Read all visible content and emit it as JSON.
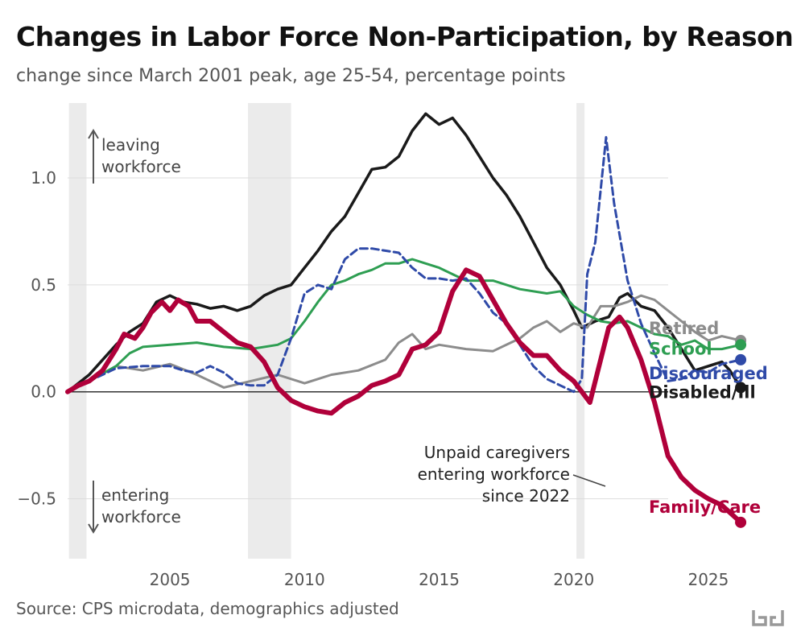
{
  "chart_data": {
    "type": "line",
    "title": "Changes in Labor Force Non-Participation, by Reason",
    "subtitle": "change since March 2001 peak, age 25-54, percentage points",
    "source": "Source: CPS microdata, demographics adjusted",
    "xlabel": "",
    "ylabel": "",
    "xlim": [
      2001.2,
      2028.5
    ],
    "ylim": [
      -0.78,
      1.35
    ],
    "x_ticks": [
      2005,
      2010,
      2015,
      2020,
      2025
    ],
    "x_tick_labels": [
      "2005",
      "2010",
      "2015",
      "2020",
      "2025"
    ],
    "y_ticks": [
      -0.5,
      0.0,
      0.5,
      1.0
    ],
    "y_tick_labels": [
      "−0.5",
      "0.0",
      "0.5",
      "1.0"
    ],
    "grid": "horizontal",
    "zero_line": true,
    "recessions": [
      [
        2001.25,
        2001.9
      ],
      [
        2007.9,
        2009.5
      ],
      [
        2020.1,
        2020.4
      ]
    ],
    "annotations": {
      "leaving": [
        "leaving",
        "workforce"
      ],
      "entering": [
        "entering",
        "workforce"
      ],
      "caregivers": [
        "Unpaid caregivers",
        "entering workforce",
        "since 2022"
      ]
    },
    "series": [
      {
        "name": "Disabled/Ill",
        "color": "#1a1a1a",
        "dash": "solid",
        "width": 3.5,
        "label_y": 0.0,
        "points": [
          [
            2001.2,
            0.0
          ],
          [
            2002.0,
            0.08
          ],
          [
            2002.5,
            0.15
          ],
          [
            2003.0,
            0.22
          ],
          [
            2003.5,
            0.28
          ],
          [
            2004.0,
            0.32
          ],
          [
            2004.5,
            0.42
          ],
          [
            2005.0,
            0.45
          ],
          [
            2005.5,
            0.42
          ],
          [
            2006.0,
            0.41
          ],
          [
            2006.5,
            0.39
          ],
          [
            2007.0,
            0.4
          ],
          [
            2007.5,
            0.38
          ],
          [
            2008.0,
            0.4
          ],
          [
            2008.5,
            0.45
          ],
          [
            2009.0,
            0.48
          ],
          [
            2009.5,
            0.5
          ],
          [
            2010.0,
            0.58
          ],
          [
            2010.5,
            0.66
          ],
          [
            2011.0,
            0.75
          ],
          [
            2011.5,
            0.82
          ],
          [
            2012.0,
            0.93
          ],
          [
            2012.5,
            1.04
          ],
          [
            2013.0,
            1.05
          ],
          [
            2013.5,
            1.1
          ],
          [
            2014.0,
            1.22
          ],
          [
            2014.5,
            1.3
          ],
          [
            2015.0,
            1.25
          ],
          [
            2015.5,
            1.28
          ],
          [
            2016.0,
            1.2
          ],
          [
            2016.5,
            1.1
          ],
          [
            2017.0,
            1.0
          ],
          [
            2017.5,
            0.92
          ],
          [
            2018.0,
            0.82
          ],
          [
            2018.5,
            0.7
          ],
          [
            2019.0,
            0.58
          ],
          [
            2019.5,
            0.5
          ],
          [
            2020.0,
            0.38
          ],
          [
            2020.3,
            0.3
          ],
          [
            2020.8,
            0.33
          ],
          [
            2021.3,
            0.35
          ],
          [
            2021.7,
            0.44
          ],
          [
            2022.0,
            0.46
          ],
          [
            2022.5,
            0.4
          ],
          [
            2023.0,
            0.38
          ],
          [
            2023.5,
            0.3
          ],
          [
            2024.0,
            0.2
          ],
          [
            2024.5,
            0.1
          ],
          [
            2025.0,
            0.12
          ],
          [
            2025.5,
            0.14
          ],
          [
            2025.8,
            0.1
          ],
          [
            2026.2,
            0.02
          ]
        ]
      },
      {
        "name": "Retired",
        "color": "#8c8c8c",
        "dash": "solid",
        "width": 3,
        "label_y": 0.3,
        "points": [
          [
            2001.2,
            0.0
          ],
          [
            2002.0,
            0.05
          ],
          [
            2003.0,
            0.12
          ],
          [
            2004.0,
            0.1
          ],
          [
            2005.0,
            0.13
          ],
          [
            2006.0,
            0.08
          ],
          [
            2007.0,
            0.02
          ],
          [
            2008.0,
            0.05
          ],
          [
            2009.0,
            0.08
          ],
          [
            2010.0,
            0.04
          ],
          [
            2011.0,
            0.08
          ],
          [
            2012.0,
            0.1
          ],
          [
            2013.0,
            0.15
          ],
          [
            2013.5,
            0.23
          ],
          [
            2014.0,
            0.27
          ],
          [
            2014.5,
            0.2
          ],
          [
            2015.0,
            0.22
          ],
          [
            2016.0,
            0.2
          ],
          [
            2017.0,
            0.19
          ],
          [
            2018.0,
            0.25
          ],
          [
            2018.5,
            0.3
          ],
          [
            2019.0,
            0.33
          ],
          [
            2019.5,
            0.28
          ],
          [
            2020.0,
            0.32
          ],
          [
            2020.5,
            0.3
          ],
          [
            2021.0,
            0.4
          ],
          [
            2021.5,
            0.4
          ],
          [
            2022.0,
            0.42
          ],
          [
            2022.5,
            0.45
          ],
          [
            2023.0,
            0.43
          ],
          [
            2023.5,
            0.38
          ],
          [
            2024.0,
            0.33
          ],
          [
            2024.5,
            0.28
          ],
          [
            2025.0,
            0.24
          ],
          [
            2025.5,
            0.26
          ],
          [
            2026.2,
            0.24
          ]
        ]
      },
      {
        "name": "School",
        "color": "#2e9e52",
        "dash": "solid",
        "width": 3,
        "label_y": 0.205,
        "points": [
          [
            2001.2,
            0.0
          ],
          [
            2002.0,
            0.05
          ],
          [
            2003.0,
            0.12
          ],
          [
            2003.5,
            0.18
          ],
          [
            2004.0,
            0.21
          ],
          [
            2005.0,
            0.22
          ],
          [
            2006.0,
            0.23
          ],
          [
            2007.0,
            0.21
          ],
          [
            2008.0,
            0.2
          ],
          [
            2009.0,
            0.22
          ],
          [
            2009.5,
            0.25
          ],
          [
            2010.0,
            0.33
          ],
          [
            2010.5,
            0.42
          ],
          [
            2011.0,
            0.5
          ],
          [
            2011.5,
            0.52
          ],
          [
            2012.0,
            0.55
          ],
          [
            2012.5,
            0.57
          ],
          [
            2013.0,
            0.6
          ],
          [
            2013.5,
            0.6
          ],
          [
            2014.0,
            0.62
          ],
          [
            2014.5,
            0.6
          ],
          [
            2015.0,
            0.58
          ],
          [
            2015.5,
            0.55
          ],
          [
            2016.0,
            0.52
          ],
          [
            2017.0,
            0.52
          ],
          [
            2018.0,
            0.48
          ],
          [
            2019.0,
            0.46
          ],
          [
            2019.5,
            0.47
          ],
          [
            2020.0,
            0.4
          ],
          [
            2020.5,
            0.36
          ],
          [
            2021.0,
            0.33
          ],
          [
            2021.5,
            0.32
          ],
          [
            2022.0,
            0.33
          ],
          [
            2022.5,
            0.3
          ],
          [
            2023.0,
            0.27
          ],
          [
            2023.5,
            0.26
          ],
          [
            2024.0,
            0.22
          ],
          [
            2024.5,
            0.24
          ],
          [
            2025.0,
            0.2
          ],
          [
            2025.5,
            0.2
          ],
          [
            2026.2,
            0.22
          ]
        ]
      },
      {
        "name": "Discouraged",
        "color": "#2f4aa8",
        "dash": "dashed",
        "width": 3,
        "label_y": 0.09,
        "points": [
          [
            2001.2,
            0.0
          ],
          [
            2002.0,
            0.05
          ],
          [
            2003.0,
            0.11
          ],
          [
            2004.0,
            0.12
          ],
          [
            2005.0,
            0.12
          ],
          [
            2005.5,
            0.1
          ],
          [
            2006.0,
            0.09
          ],
          [
            2006.5,
            0.12
          ],
          [
            2007.0,
            0.09
          ],
          [
            2007.5,
            0.04
          ],
          [
            2008.0,
            0.03
          ],
          [
            2008.5,
            0.03
          ],
          [
            2009.0,
            0.08
          ],
          [
            2009.5,
            0.25
          ],
          [
            2010.0,
            0.46
          ],
          [
            2010.5,
            0.5
          ],
          [
            2011.0,
            0.48
          ],
          [
            2011.5,
            0.62
          ],
          [
            2012.0,
            0.67
          ],
          [
            2012.5,
            0.67
          ],
          [
            2013.0,
            0.66
          ],
          [
            2013.5,
            0.65
          ],
          [
            2014.0,
            0.58
          ],
          [
            2014.5,
            0.53
          ],
          [
            2015.0,
            0.53
          ],
          [
            2015.5,
            0.52
          ],
          [
            2016.0,
            0.53
          ],
          [
            2016.5,
            0.46
          ],
          [
            2017.0,
            0.37
          ],
          [
            2017.5,
            0.32
          ],
          [
            2018.0,
            0.22
          ],
          [
            2018.5,
            0.12
          ],
          [
            2019.0,
            0.06
          ],
          [
            2019.5,
            0.03
          ],
          [
            2020.0,
            0.0
          ],
          [
            2020.3,
            0.06
          ],
          [
            2020.5,
            0.55
          ],
          [
            2020.8,
            0.7
          ],
          [
            2021.2,
            1.19
          ],
          [
            2021.5,
            0.88
          ],
          [
            2022.0,
            0.52
          ],
          [
            2022.5,
            0.32
          ],
          [
            2023.0,
            0.18
          ],
          [
            2023.5,
            0.05
          ],
          [
            2024.0,
            0.06
          ],
          [
            2024.5,
            0.1
          ],
          [
            2025.0,
            0.09
          ],
          [
            2025.5,
            0.13
          ],
          [
            2026.2,
            0.15
          ]
        ]
      },
      {
        "name": "Family/Care",
        "color": "#b0003a",
        "dash": "solid",
        "width": 6,
        "label_y": -0.535,
        "points": [
          [
            2001.2,
            0.0
          ],
          [
            2001.6,
            0.03
          ],
          [
            2002.0,
            0.05
          ],
          [
            2002.5,
            0.1
          ],
          [
            2003.0,
            0.2
          ],
          [
            2003.3,
            0.27
          ],
          [
            2003.7,
            0.25
          ],
          [
            2004.0,
            0.3
          ],
          [
            2004.3,
            0.37
          ],
          [
            2004.7,
            0.42
          ],
          [
            2005.0,
            0.38
          ],
          [
            2005.3,
            0.43
          ],
          [
            2005.7,
            0.4
          ],
          [
            2006.0,
            0.33
          ],
          [
            2006.5,
            0.33
          ],
          [
            2007.0,
            0.28
          ],
          [
            2007.5,
            0.23
          ],
          [
            2008.0,
            0.21
          ],
          [
            2008.5,
            0.14
          ],
          [
            2009.0,
            0.02
          ],
          [
            2009.5,
            -0.04
          ],
          [
            2010.0,
            -0.07
          ],
          [
            2010.5,
            -0.09
          ],
          [
            2011.0,
            -0.1
          ],
          [
            2011.5,
            -0.05
          ],
          [
            2012.0,
            -0.02
          ],
          [
            2012.5,
            0.03
          ],
          [
            2013.0,
            0.05
          ],
          [
            2013.5,
            0.08
          ],
          [
            2014.0,
            0.2
          ],
          [
            2014.5,
            0.22
          ],
          [
            2015.0,
            0.28
          ],
          [
            2015.5,
            0.47
          ],
          [
            2016.0,
            0.57
          ],
          [
            2016.5,
            0.54
          ],
          [
            2017.0,
            0.43
          ],
          [
            2017.5,
            0.32
          ],
          [
            2018.0,
            0.23
          ],
          [
            2018.5,
            0.17
          ],
          [
            2019.0,
            0.17
          ],
          [
            2019.5,
            0.1
          ],
          [
            2020.0,
            0.05
          ],
          [
            2020.3,
            0.0
          ],
          [
            2020.6,
            -0.05
          ],
          [
            2020.9,
            0.1
          ],
          [
            2021.3,
            0.3
          ],
          [
            2021.7,
            0.35
          ],
          [
            2022.0,
            0.3
          ],
          [
            2022.5,
            0.15
          ],
          [
            2023.0,
            -0.05
          ],
          [
            2023.5,
            -0.3
          ],
          [
            2024.0,
            -0.4
          ],
          [
            2024.5,
            -0.46
          ],
          [
            2025.0,
            -0.5
          ],
          [
            2025.5,
            -0.53
          ],
          [
            2026.2,
            -0.61
          ]
        ]
      }
    ]
  }
}
